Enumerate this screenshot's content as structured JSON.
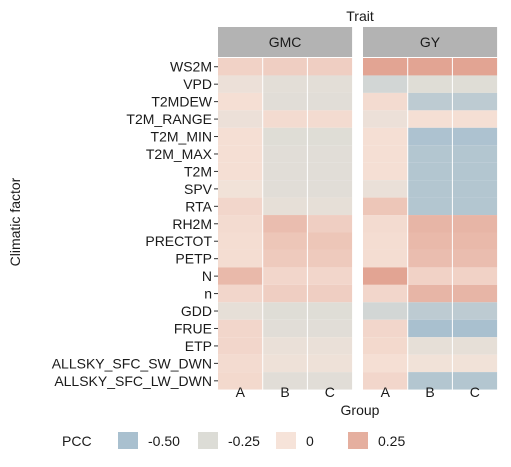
{
  "chart_data": {
    "type": "heatmap",
    "title": "Trait",
    "xlabel": "Group",
    "ylabel": "Climatic factor",
    "facets": [
      "GMC",
      "GY"
    ],
    "x_categories": [
      "A",
      "B",
      "C"
    ],
    "y_categories": [
      "WS2M",
      "VPD",
      "T2MDEW",
      "T2M_RANGE",
      "T2M_MIN",
      "T2M_MAX",
      "T2M",
      "SPV",
      "RTA",
      "RH2M",
      "PRECTOT",
      "PETP",
      "N",
      "n",
      "GDD",
      "FRUE",
      "ETP",
      "ALLSKY_SFC_SW_DWN",
      "ALLSKY_SFC_LW_DWN"
    ],
    "values": {
      "GMC": [
        [
          0.08,
          0.1,
          0.1
        ],
        [
          -0.1,
          -0.18,
          -0.18
        ],
        [
          0.02,
          -0.2,
          -0.2
        ],
        [
          -0.1,
          0.04,
          0.04
        ],
        [
          0.02,
          -0.22,
          -0.22
        ],
        [
          0.02,
          -0.2,
          -0.2
        ],
        [
          0.02,
          -0.2,
          -0.2
        ],
        [
          -0.05,
          -0.2,
          -0.2
        ],
        [
          0.06,
          -0.15,
          -0.15
        ],
        [
          0.04,
          0.18,
          0.1
        ],
        [
          0.03,
          0.14,
          0.14
        ],
        [
          0.03,
          0.12,
          0.12
        ],
        [
          0.2,
          0.06,
          0.06
        ],
        [
          0.06,
          0.1,
          0.1
        ],
        [
          -0.15,
          -0.22,
          -0.22
        ],
        [
          0.06,
          -0.2,
          -0.2
        ],
        [
          0.06,
          -0.12,
          -0.12
        ],
        [
          0.04,
          -0.08,
          -0.08
        ],
        [
          0.05,
          -0.2,
          -0.2
        ]
      ],
      "GY": [
        [
          0.3,
          0.3,
          0.3
        ],
        [
          -0.3,
          -0.22,
          -0.22
        ],
        [
          0.04,
          -0.4,
          -0.4
        ],
        [
          -0.1,
          0.02,
          0.02
        ],
        [
          0.02,
          -0.48,
          -0.48
        ],
        [
          0.02,
          -0.45,
          -0.45
        ],
        [
          0.02,
          -0.45,
          -0.45
        ],
        [
          -0.12,
          -0.45,
          -0.45
        ],
        [
          0.14,
          -0.45,
          -0.45
        ],
        [
          0.04,
          0.22,
          0.22
        ],
        [
          0.03,
          0.2,
          0.2
        ],
        [
          0.03,
          0.18,
          0.18
        ],
        [
          0.3,
          0.08,
          0.08
        ],
        [
          0.06,
          0.22,
          0.22
        ],
        [
          -0.3,
          -0.4,
          -0.4
        ],
        [
          0.06,
          -0.5,
          -0.5
        ],
        [
          0.05,
          -0.15,
          -0.15
        ],
        [
          0.02,
          -0.05,
          -0.05
        ],
        [
          0.06,
          -0.45,
          -0.45
        ]
      ]
    },
    "legend": {
      "title": "PCC",
      "placement": "bottom",
      "entries": [
        {
          "label": "-0.50",
          "value": -0.5
        },
        {
          "label": "-0.25",
          "value": -0.25
        },
        {
          "label": "0",
          "value": 0
        },
        {
          "label": "0.25",
          "value": 0.25
        }
      ]
    },
    "color_scale": {
      "stops": [
        {
          "value": -0.5,
          "color": "#a9c0cf"
        },
        {
          "value": -0.25,
          "color": "#dcdcd6"
        },
        {
          "value": 0,
          "color": "#f6e3d9"
        },
        {
          "value": 0.3,
          "color": "#e2a493"
        }
      ]
    },
    "colors": {
      "strip_fill": "#b3b3b3",
      "cell_divider": "#ffffff"
    }
  }
}
